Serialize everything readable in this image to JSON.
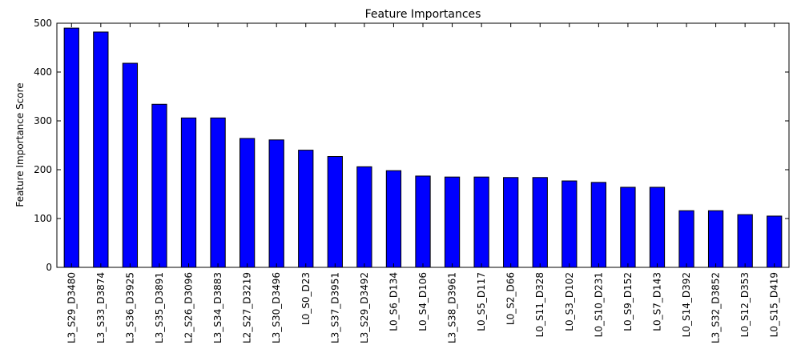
{
  "chart_data": {
    "type": "bar",
    "title": "Feature Importances",
    "xlabel": "",
    "ylabel": "Feature Importance Score",
    "ylim": [
      0,
      500
    ],
    "yticks": [
      0,
      100,
      200,
      300,
      400,
      500
    ],
    "grid": false,
    "bar_color": "#0000ff",
    "edge_color": "#000000",
    "categories": [
      "L3_S29_D3480",
      "L3_S33_D3874",
      "L3_S36_D3925",
      "L3_S35_D3891",
      "L2_S26_D3096",
      "L3_S34_D3883",
      "L2_S27_D3219",
      "L3_S30_D3496",
      "L0_S0_D23",
      "L3_S37_D3951",
      "L3_S29_D3492",
      "L0_S6_D134",
      "L0_S4_D106",
      "L3_S38_D3961",
      "L0_S5_D117",
      "L0_S2_D66",
      "L0_S11_D328",
      "L0_S3_D102",
      "L0_S10_D231",
      "L0_S9_D152",
      "L0_S7_D143",
      "L0_S14_D392",
      "L3_S32_D3852",
      "L0_S12_D353",
      "L0_S15_D419"
    ],
    "values": [
      490,
      482,
      418,
      334,
      306,
      306,
      264,
      261,
      240,
      227,
      206,
      198,
      187,
      185,
      185,
      184,
      184,
      177,
      174,
      164,
      164,
      116,
      116,
      108,
      105
    ]
  }
}
